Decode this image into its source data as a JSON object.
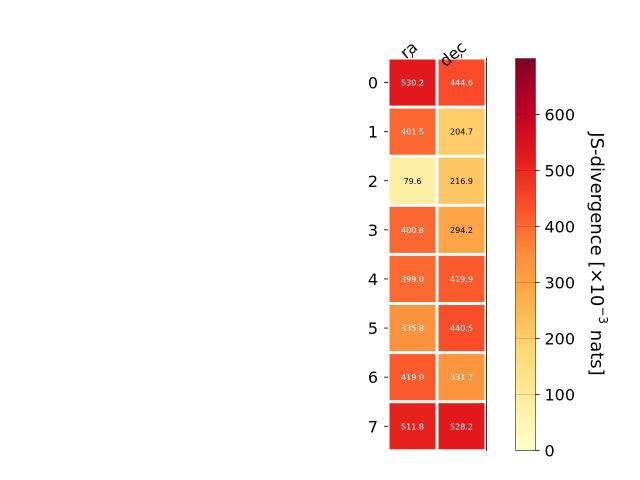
{
  "chart_data": {
    "type": "heatmap",
    "x_categories": [
      "ra",
      "dec"
    ],
    "y_categories": [
      "0",
      "1",
      "2",
      "3",
      "4",
      "5",
      "6",
      "7"
    ],
    "values": [
      [
        530.2,
        444.6
      ],
      [
        401.5,
        204.7
      ],
      [
        79.6,
        216.9
      ],
      [
        400.8,
        294.2
      ],
      [
        399.0,
        419.9
      ],
      [
        335.8,
        440.5
      ],
      [
        419.0,
        331.7
      ],
      [
        511.8,
        528.2
      ]
    ],
    "value_labels": [
      [
        "530.2",
        "444.6"
      ],
      [
        "401.5",
        "204.7"
      ],
      [
        "79.6",
        "216.9"
      ],
      [
        "400.8",
        "294.2"
      ],
      [
        "399.0",
        "419.9"
      ],
      [
        "335.8",
        "440.5"
      ],
      [
        "419.0",
        "331.7"
      ],
      [
        "511.8",
        "528.2"
      ]
    ],
    "colorbar": {
      "label_prefix": "JS-divergence [×10",
      "label_exponent": "−3",
      "label_suffix": " nats]",
      "range": [
        0,
        700
      ],
      "ticks": [
        0,
        100,
        200,
        300,
        400,
        500,
        600
      ],
      "tick_labels": [
        "0",
        "100",
        "200",
        "300",
        "400",
        "500",
        "600"
      ],
      "colormap": "YlOrRd"
    }
  }
}
